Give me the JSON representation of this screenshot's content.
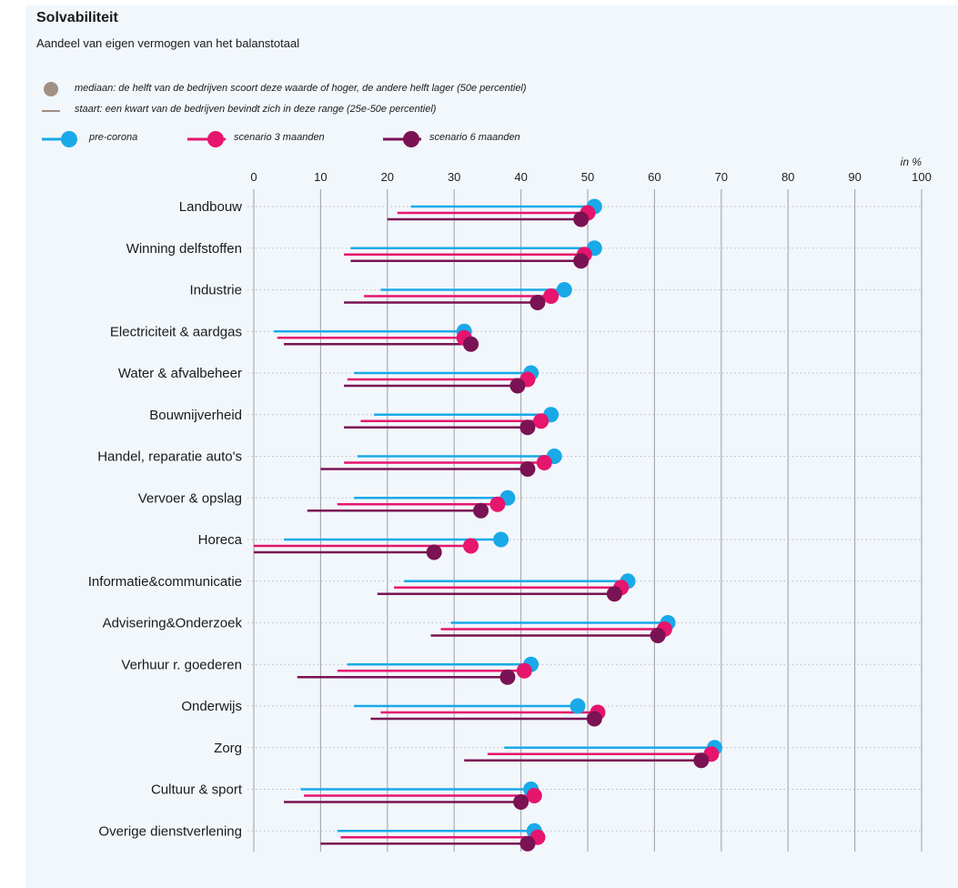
{
  "title": "Solvabiliteit",
  "subtitle": "Aandeel van eigen vermogen van het balanstotaal",
  "notes": {
    "median": "mediaan: de helft van de bedrijven scoort deze waarde of hoger, de andere helft lager (50e percentiel)",
    "tail": "staart: een kwart van de bedrijven bevindt zich in deze range (25e-50e percentiel)"
  },
  "colors": {
    "pre-corona": "#19a9e8",
    "scenario 3 maanden": "#e6156d",
    "scenario 6 maanden": "#7a1253",
    "note_symbol": "#a08f83",
    "grid": "#a9adb1",
    "background": "#f2f7fc"
  },
  "chart_data": {
    "type": "dumbbell",
    "title": "Solvabiliteit",
    "subtitle": "Aandeel van eigen vermogen van het balanstotaal",
    "unit_label": "in %",
    "xlim": [
      0,
      100
    ],
    "xticks": [
      0,
      10,
      20,
      30,
      40,
      50,
      60,
      70,
      80,
      90,
      100
    ],
    "grid": true,
    "legend_position": "top-left",
    "categories": [
      "Landbouw",
      "Winning delfstoffen",
      "Industrie",
      "Electriciteit & aardgas",
      "Water & afvalbeheer",
      "Bouwnijverheid",
      "Handel, reparatie auto's",
      "Vervoer & opslag",
      "Horeca",
      "Informatie&communicatie",
      "Advisering&Onderzoek",
      "Verhuur r. goederen",
      "Onderwijs",
      "Zorg",
      "Cultuur & sport",
      "Overige dienstverlening"
    ],
    "series": [
      {
        "name": "pre-corona",
        "p25": [
          23.5,
          14.5,
          19,
          3,
          15,
          18,
          15.5,
          15,
          4.5,
          22.5,
          29.5,
          14,
          15,
          37.5,
          7,
          12.5
        ],
        "median": [
          51,
          51,
          46.5,
          31.5,
          41.5,
          44.5,
          45,
          38,
          37,
          56,
          62,
          41.5,
          48.5,
          69,
          41.5,
          42
        ]
      },
      {
        "name": "scenario 3 maanden",
        "p25": [
          21.5,
          13.5,
          16.5,
          3.5,
          14,
          16,
          13.5,
          12.5,
          0,
          21,
          28,
          12.5,
          19,
          35,
          7.5,
          13
        ],
        "median": [
          50,
          49.5,
          44.5,
          31.5,
          41,
          43,
          43.5,
          36.5,
          32.5,
          55,
          61.5,
          40.5,
          51.5,
          68.5,
          42,
          42.5
        ]
      },
      {
        "name": "scenario 6 maanden",
        "p25": [
          20,
          14.5,
          13.5,
          4.5,
          13.5,
          13.5,
          10,
          8,
          0,
          18.5,
          26.5,
          6.5,
          17.5,
          31.5,
          4.5,
          10
        ],
        "median": [
          49,
          49,
          42.5,
          32.5,
          39.5,
          41,
          41,
          34,
          27,
          54,
          60.5,
          38,
          51,
          67,
          40,
          41
        ]
      }
    ]
  }
}
